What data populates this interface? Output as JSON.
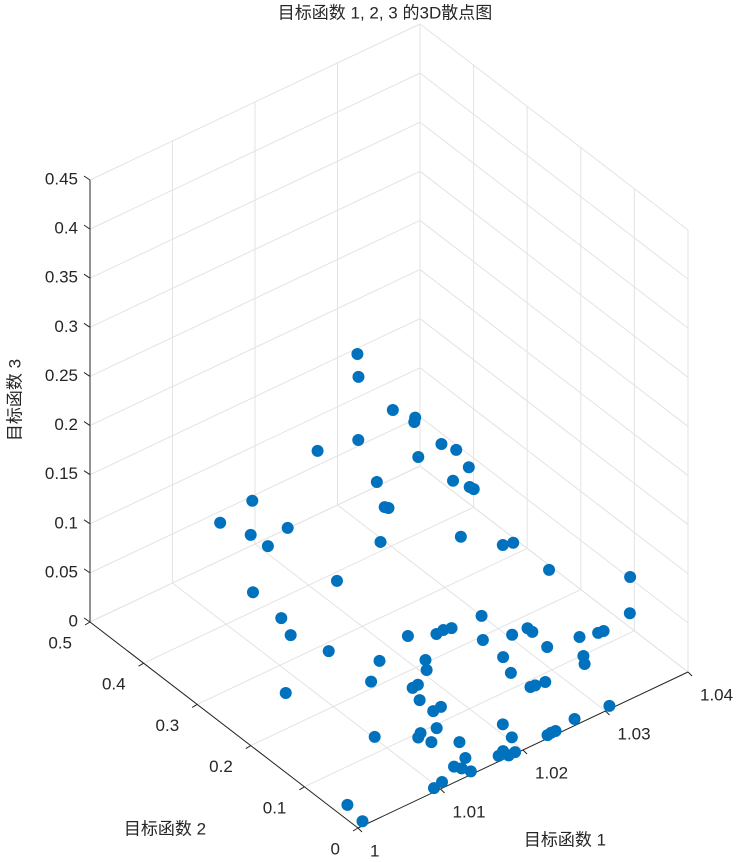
{
  "chart_data": {
    "type": "scatter3d",
    "title": "目标函数 1, 2, 3 的3D散点图",
    "xlabel": "目标函数 1",
    "ylabel": "目标函数 2",
    "zlabel": "目标函数 3",
    "xlim": [
      1,
      1.04
    ],
    "ylim": [
      0,
      0.5
    ],
    "zlim": [
      0,
      0.45
    ],
    "xticks": [
      1,
      1.01,
      1.02,
      1.03,
      1.04
    ],
    "yticks": [
      0,
      0.1,
      0.2,
      0.3,
      0.4,
      0.5
    ],
    "zticks": [
      0,
      0.05,
      0.1,
      0.15,
      0.2,
      0.25,
      0.3,
      0.35,
      0.4,
      0.45
    ],
    "grid": true,
    "color": "#0072bd",
    "x": [
      1.001,
      1.0006,
      1.0096,
      1.0108,
      1.0132,
      1.0136,
      1.014,
      1.0149,
      1.0147,
      1.0176,
      1.0184,
      1.0184,
      1.0192,
      1.0204,
      1.0197,
      1.0233,
      1.0238,
      1.0243,
      1.0269,
      1.0308,
      1.0112,
      1.0118,
      1.0126,
      1.0135,
      1.0067,
      1.0128,
      1.0136,
      1.0146,
      1.0126,
      1.0133,
      1.015,
      1.0141,
      1.0088,
      1.0093,
      1.0117,
      1.0162,
      1.0171,
      1.0179,
      1.0192,
      1.0191,
      1.0218,
      1.0236,
      1.0236,
      1.0211,
      1.0254,
      1.0288,
      1.0306,
      1.0312,
      1.0294,
      1.0287,
      1.0223,
      1.0224,
      1.0229,
      1.024,
      1.0349,
      1.0363,
      1.0266,
      1.0234,
      1.0244,
      1.0189,
      1.0201,
      1.0202,
      1.0173,
      1.0198,
      1.0184,
      1.0157,
      1.0127,
      1.012,
      1.0115,
      1.0089,
      1.0077,
      1.0074,
      1.0074,
      1.0093,
      1.0096,
      1.0098,
      1.0102,
      1.0079,
      1.0046,
      1.0022,
      1.0033,
      1.0046,
      1.0035,
      1.0096,
      1.0065,
      1.0061,
      1.0073,
      1.0086,
      1.0056
    ],
    "y": [
      0.007,
      0.029,
      0.006,
      0.0095,
      0.024,
      0.016,
      0.005,
      0.029,
      0.037,
      0.0085,
      0.002,
      0.0125,
      0.0025,
      0.027,
      0.033,
      0.005,
      0.006,
      0.0055,
      0.01,
      0.005,
      0.06,
      0.065,
      0.057,
      0.061,
      0.072,
      0.082,
      0.069,
      0.07,
      0.092,
      0.093,
      0.105,
      0.089,
      0.111,
      0.103,
      0.087,
      0.103,
      0.104,
      0.101,
      0.065,
      0.061,
      0.048,
      0.047,
      0.038,
      0.054,
      0.038,
      0.03,
      0.023,
      0.022,
      0.032,
      0.019,
      0.058,
      0.023,
      0.022,
      0.02,
      0.03,
      0.051,
      0.053,
      0.09,
      0.086,
      0.099,
      0.101,
      0.095,
      0.089,
      0.098,
      0.1,
      0.086,
      0.083,
      0.078,
      0.072,
      0.072,
      0.118,
      0.113,
      0.115,
      0.108,
      0.098,
      0.094,
      0.115,
      0.197,
      0.268,
      0.291,
      0.251,
      0.202,
      0.222,
      0.187,
      0.296,
      0.237,
      0.238,
      0.187,
      0.221
    ],
    "z": [
      0,
      0.009,
      0,
      0,
      0,
      0,
      0,
      0,
      0.0135,
      0,
      0,
      0,
      0,
      0,
      0.0135,
      0,
      0,
      0,
      0,
      0,
      0.0225,
      0.0225,
      0.0135,
      0.0225,
      0.036,
      0.045,
      0.036,
      0.036,
      0.054,
      0.054,
      0.0675,
      0.0675,
      0.0675,
      0.09,
      0.1125,
      0.09,
      0.09,
      0.09,
      0.1125,
      0.09,
      0.09,
      0.09,
      0.09,
      0.0675,
      0.0675,
      0.0675,
      0.0675,
      0.0675,
      0.045,
      0.045,
      0.045,
      0.045,
      0.045,
      0.045,
      0.0675,
      0.09,
      0.135,
      0.1575,
      0.1575,
      0.18,
      0.225,
      0.225,
      0.2475,
      0.2475,
      0.27,
      0.2925,
      0.2925,
      0.3375,
      0.3375,
      0.36,
      0.315,
      0.3825,
      0.405,
      0.27,
      0.2475,
      0.2475,
      0.2025,
      0.27,
      0.2025,
      0.18,
      0.18,
      0.2025,
      0.18,
      0.135,
      0.09,
      0.09,
      0.0675,
      0.0675,
      0.0225
    ]
  }
}
